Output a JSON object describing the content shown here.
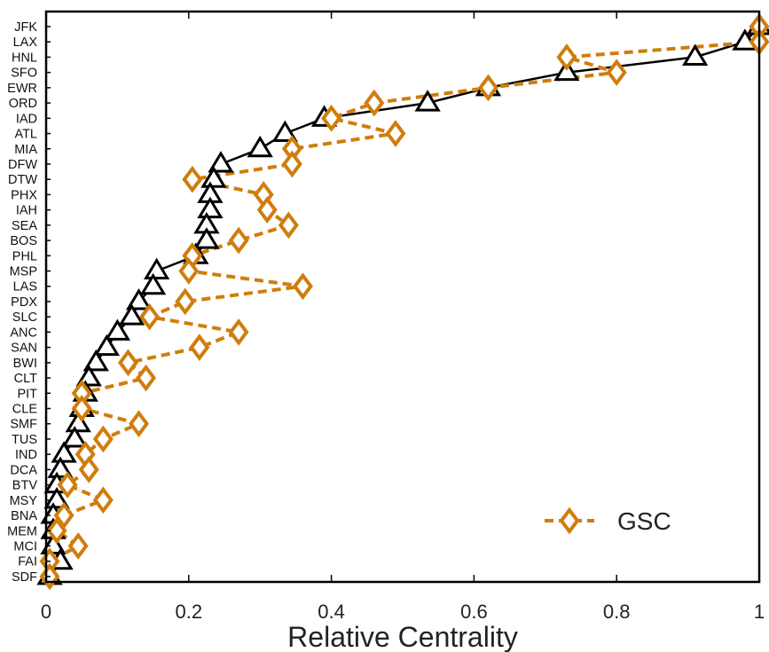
{
  "chart_data": {
    "type": "line",
    "xlabel": "Relative Centrality",
    "xlim": [
      0,
      1
    ],
    "xticks": [
      "0",
      "0.2",
      "0.4",
      "0.6",
      "0.8",
      "1"
    ],
    "categories": [
      "JFK",
      "LAX",
      "HNL",
      "SFO",
      "EWR",
      "ORD",
      "IAD",
      "ATL",
      "MIA",
      "DFW",
      "DTW",
      "PHX",
      "IAH",
      "SEA",
      "BOS",
      "PHL",
      "MSP",
      "LAS",
      "PDX",
      "SLC",
      "ANC",
      "SAN",
      "BWI",
      "CLT",
      "PIT",
      "CLE",
      "SMF",
      "TUS",
      "IND",
      "DCA",
      "BTV",
      "MSY",
      "BNA",
      "MEM",
      "MCI",
      "FAI",
      "SDF"
    ],
    "series": [
      {
        "name": "",
        "marker": "triangle",
        "color": "#000000",
        "line": "solid",
        "values": [
          1.0,
          0.98,
          0.91,
          0.73,
          0.62,
          0.535,
          0.39,
          0.335,
          0.3,
          0.245,
          0.235,
          0.23,
          0.23,
          0.225,
          0.225,
          0.21,
          0.155,
          0.15,
          0.13,
          0.12,
          0.1,
          0.085,
          0.07,
          0.06,
          0.055,
          0.05,
          0.045,
          0.04,
          0.025,
          0.02,
          0.015,
          0.015,
          0.01,
          0.01,
          0.01,
          0.02,
          0.005
        ]
      },
      {
        "name": "GSC",
        "marker": "diamond",
        "color": "#d07d0c",
        "line": "dashed",
        "values": [
          1.0,
          1.0,
          0.73,
          0.8,
          0.62,
          0.46,
          0.4,
          0.49,
          0.345,
          0.345,
          0.205,
          0.305,
          0.31,
          0.34,
          0.27,
          0.205,
          0.2,
          0.36,
          0.195,
          0.145,
          0.27,
          0.215,
          0.115,
          0.14,
          0.05,
          0.05,
          0.13,
          0.08,
          0.055,
          0.06,
          0.03,
          0.08,
          0.025,
          0.015,
          0.045,
          0.005,
          0.005
        ]
      }
    ],
    "legend": {
      "position": "bottom-right",
      "entries": [
        "GSC"
      ]
    },
    "grid": false
  }
}
